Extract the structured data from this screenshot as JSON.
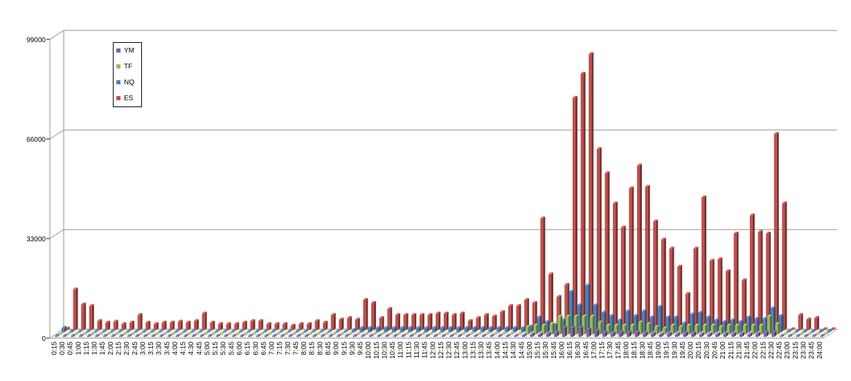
{
  "chart_data": {
    "type": "bar",
    "title": "",
    "xlabel": "",
    "ylabel": "",
    "ylim": [
      0,
      99000
    ],
    "yticks": [
      "0",
      "33000",
      "66000",
      "99000"
    ],
    "grid": true,
    "legend_position": "top-left",
    "categories": [
      "0:15",
      "0:30",
      "0:45",
      "1:00",
      "1:15",
      "1:30",
      "1:45",
      "2:00",
      "2:15",
      "2:30",
      "2:45",
      "3:00",
      "3:15",
      "3:30",
      "3:45",
      "4:00",
      "4:15",
      "4:30",
      "4:45",
      "5:00",
      "5:15",
      "5:30",
      "5:45",
      "6:00",
      "6:15",
      "6:30",
      "6:45",
      "7:00",
      "7:15",
      "7:30",
      "7:45",
      "8:00",
      "8:15",
      "8:30",
      "8:45",
      "9:00",
      "9:15",
      "9:30",
      "9:45",
      "10:00",
      "10:15",
      "10:30",
      "10:45",
      "11:00",
      "11:15",
      "11:30",
      "11:45",
      "12:00",
      "12:15",
      "12:30",
      "12:45",
      "13:00",
      "13:15",
      "13:30",
      "13:45",
      "14:00",
      "14:15",
      "14:30",
      "14:45",
      "15:00",
      "15:15",
      "15:30",
      "15:45",
      "16:00",
      "16:15",
      "16:30",
      "16:45",
      "17:00",
      "17:15",
      "17:30",
      "17:45",
      "18:00",
      "18:15",
      "18:30",
      "18:45",
      "19:00",
      "19:15",
      "19:30",
      "19:45",
      "20:00",
      "20:15",
      "20:30",
      "20:45",
      "21:00",
      "21:15",
      "21:30",
      "21:45",
      "22:00",
      "22:15",
      "22:30",
      "22:45",
      "23:00",
      "23:15",
      "23:30",
      "23:45",
      "24:00"
    ],
    "series": [
      {
        "name": "YM",
        "color": "#7f63a1",
        "values": [
          0,
          0,
          0,
          0,
          0,
          0,
          0,
          0,
          0,
          0,
          0,
          0,
          0,
          0,
          0,
          0,
          0,
          0,
          0,
          0,
          0,
          0,
          0,
          0,
          0,
          0,
          0,
          0,
          0,
          0,
          0,
          0,
          0,
          0,
          0,
          0,
          0,
          0,
          0,
          0,
          0,
          0,
          0,
          0,
          0,
          0,
          0,
          0,
          0,
          0,
          0,
          0,
          0,
          0,
          0,
          0,
          0,
          0,
          500,
          800,
          800,
          1000,
          1500,
          3000,
          3000,
          3000,
          2500,
          2000,
          1500,
          1200,
          1500,
          1500,
          1500,
          1200,
          1000,
          800,
          1000,
          800,
          1200,
          1200,
          800,
          800,
          800,
          1000,
          1000,
          1000,
          800,
          1000,
          1500,
          1500,
          0,
          0,
          0,
          0,
          0,
          0
        ]
      },
      {
        "name": "TF",
        "color": "#9bbb59",
        "values": [
          0,
          0,
          0,
          0,
          0,
          0,
          0,
          0,
          0,
          0,
          0,
          0,
          0,
          0,
          0,
          0,
          0,
          0,
          0,
          0,
          0,
          0,
          0,
          0,
          0,
          0,
          0,
          0,
          0,
          0,
          0,
          0,
          0,
          0,
          0,
          0,
          0,
          0,
          0,
          0,
          0,
          0,
          0,
          0,
          0,
          0,
          0,
          0,
          0,
          0,
          0,
          0,
          0,
          0,
          0,
          0,
          0,
          0,
          2500,
          3000,
          3000,
          3500,
          6000,
          6000,
          6000,
          6000,
          6000,
          4000,
          3000,
          3000,
          3000,
          3000,
          4000,
          3500,
          2500,
          2000,
          3000,
          2500,
          3000,
          3000,
          3000,
          3000,
          2500,
          3000,
          3000,
          3000,
          3000,
          3000,
          6000,
          3500,
          0,
          0,
          0,
          0,
          0,
          0
        ]
      },
      {
        "name": "NQ",
        "color": "#4f81bd",
        "values": [
          1500,
          500,
          300,
          300,
          300,
          300,
          300,
          300,
          300,
          300,
          300,
          300,
          300,
          300,
          300,
          300,
          300,
          300,
          300,
          300,
          300,
          300,
          300,
          300,
          300,
          300,
          300,
          300,
          300,
          300,
          300,
          300,
          300,
          300,
          300,
          300,
          800,
          1500,
          1500,
          1500,
          1500,
          1500,
          1500,
          1500,
          1500,
          1500,
          1500,
          1500,
          1500,
          1500,
          1500,
          1500,
          1500,
          1500,
          1500,
          1500,
          1500,
          1500,
          2000,
          5000,
          3500,
          2500,
          4000,
          13500,
          9000,
          15500,
          9000,
          6500,
          5500,
          4000,
          7000,
          5500,
          7000,
          5000,
          8500,
          5000,
          5000,
          3000,
          6000,
          6500,
          5000,
          4000,
          3500,
          4000,
          3500,
          5000,
          4500,
          4500,
          8000,
          5500,
          500,
          500,
          500,
          500,
          500,
          500
        ]
      },
      {
        "name": "ES",
        "color": "#c0504d",
        "values": [
          500,
          13500,
          8500,
          8000,
          3000,
          2500,
          2800,
          2000,
          2500,
          5000,
          2500,
          2000,
          2500,
          2500,
          2800,
          2500,
          3000,
          5500,
          2500,
          2000,
          2000,
          2000,
          2500,
          3000,
          3000,
          2000,
          2000,
          2000,
          1500,
          2000,
          2000,
          3000,
          2500,
          5000,
          3500,
          4000,
          3500,
          10000,
          9000,
          4000,
          7000,
          5000,
          5000,
          5000,
          5000,
          5000,
          5500,
          5500,
          5000,
          5500,
          3000,
          4000,
          5000,
          4500,
          6000,
          8000,
          8000,
          10000,
          9000,
          37000,
          18500,
          11000,
          15000,
          77000,
          85000,
          91500,
          60000,
          52000,
          42000,
          34000,
          47000,
          54500,
          47500,
          36000,
          30000,
          27000,
          21000,
          12000,
          27000,
          44000,
          23000,
          23500,
          19500,
          32000,
          16500,
          38000,
          32500,
          32000,
          65000,
          42000,
          0,
          5000,
          3500,
          4000,
          0,
          0
        ]
      }
    ]
  }
}
